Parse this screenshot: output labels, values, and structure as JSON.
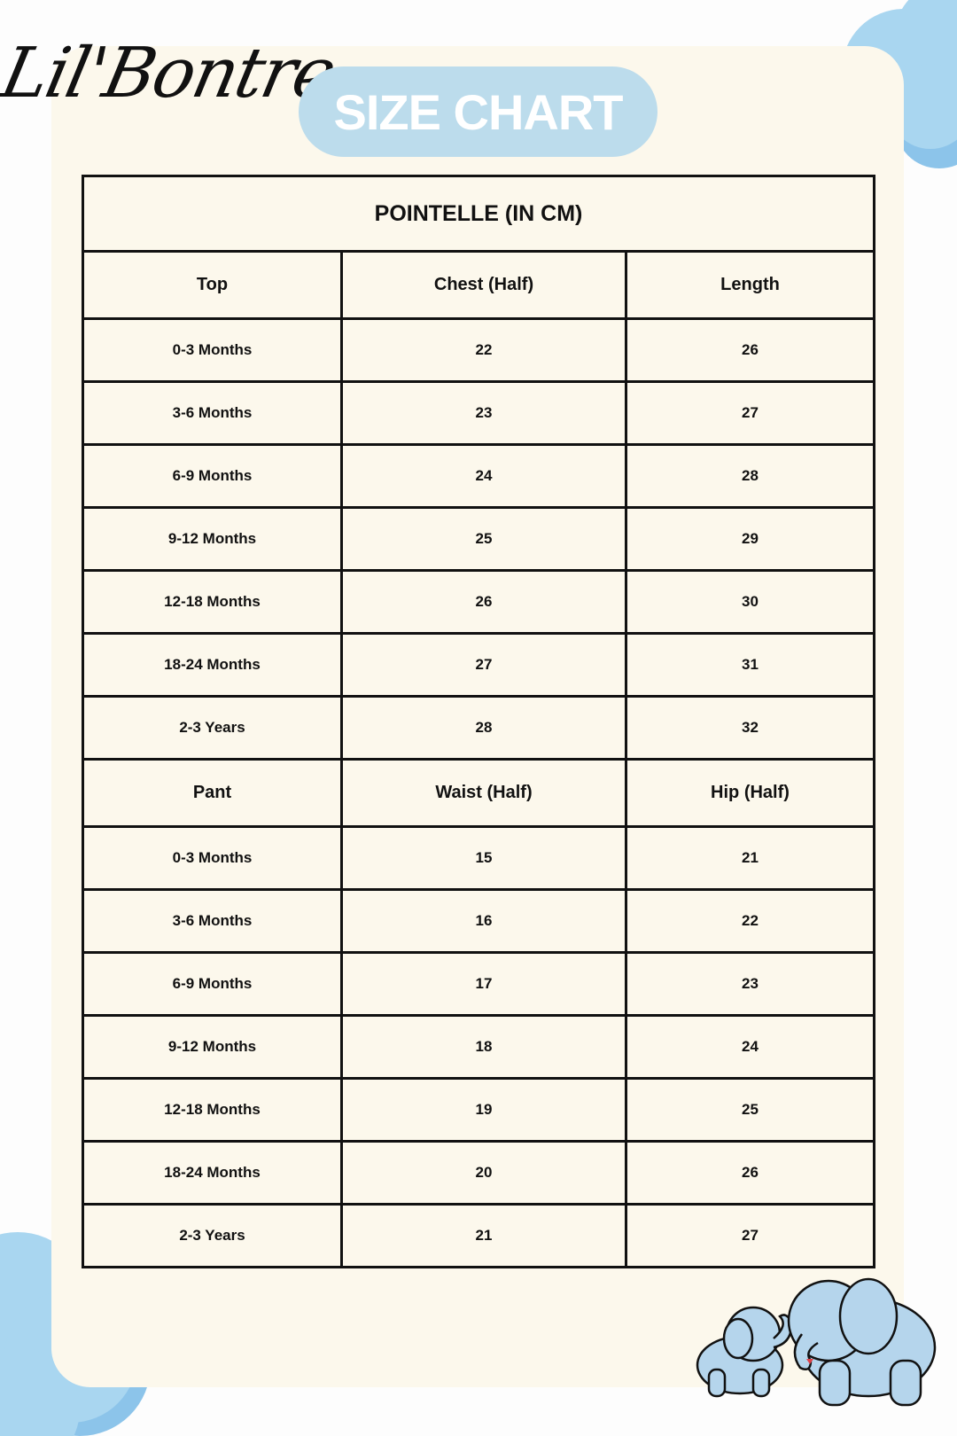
{
  "brand": {
    "logo_text": "Lil'Bontre"
  },
  "badge": {
    "label": "SIZE CHART"
  },
  "table": {
    "title": "POINTELLE (IN CM)",
    "sections": [
      {
        "headers": [
          "Top",
          "Chest (Half)",
          "Length"
        ],
        "rows": [
          [
            "0-3 Months",
            "22",
            "26"
          ],
          [
            "3-6 Months",
            "23",
            "27"
          ],
          [
            "6-9 Months",
            "24",
            "28"
          ],
          [
            "9-12 Months",
            "25",
            "29"
          ],
          [
            "12-18 Months",
            "26",
            "30"
          ],
          [
            "18-24 Months",
            "27",
            "31"
          ],
          [
            "2-3 Years",
            "28",
            "32"
          ]
        ]
      },
      {
        "headers": [
          "Pant",
          "Waist (Half)",
          "Hip (Half)"
        ],
        "rows": [
          [
            "0-3 Months",
            "15",
            "21"
          ],
          [
            "3-6 Months",
            "16",
            "22"
          ],
          [
            "6-9 Months",
            "17",
            "23"
          ],
          [
            "9-12 Months",
            "18",
            "24"
          ],
          [
            "12-18 Months",
            "19",
            "25"
          ],
          [
            "18-24 Months",
            "20",
            "26"
          ],
          [
            "2-3 Years",
            "21",
            "27"
          ]
        ]
      }
    ]
  },
  "colors": {
    "card": "#fcf8ec",
    "badge": "#bcdcec",
    "cloud": "#a9d6f0",
    "elephant": "#b5d5ec"
  }
}
